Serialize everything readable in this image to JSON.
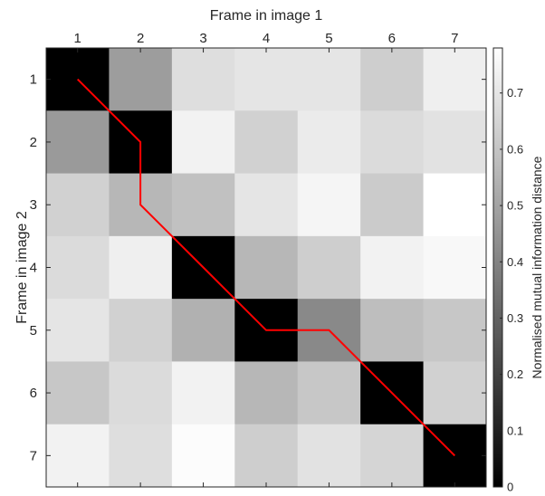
{
  "chart_data": {
    "type": "heatmap",
    "xlabel": "Frame in image 1",
    "ylabel": "Frame in image 2",
    "x_categories": [
      "1",
      "2",
      "3",
      "4",
      "5",
      "6",
      "7"
    ],
    "y_categories": [
      "1",
      "2",
      "3",
      "4",
      "5",
      "6",
      "7"
    ],
    "x_axis_position": "top",
    "values": [
      [
        0.0,
        0.48,
        0.68,
        0.7,
        0.7,
        0.63,
        0.73
      ],
      [
        0.47,
        0.0,
        0.74,
        0.64,
        0.72,
        0.67,
        0.69
      ],
      [
        0.64,
        0.56,
        0.59,
        0.7,
        0.75,
        0.62,
        0.78
      ],
      [
        0.67,
        0.73,
        0.0,
        0.56,
        0.63,
        0.74,
        0.76
      ],
      [
        0.7,
        0.64,
        0.54,
        0.0,
        0.42,
        0.58,
        0.61
      ],
      [
        0.61,
        0.67,
        0.74,
        0.56,
        0.61,
        0.0,
        0.64
      ],
      [
        0.74,
        0.68,
        0.77,
        0.63,
        0.69,
        0.65,
        0.0
      ]
    ],
    "path": {
      "color": "#ff0000",
      "points": [
        [
          1,
          1
        ],
        [
          2,
          2
        ],
        [
          2,
          3
        ],
        [
          3,
          4
        ],
        [
          4,
          5
        ],
        [
          5,
          5
        ],
        [
          6,
          6
        ],
        [
          7,
          7
        ]
      ]
    },
    "colorbar": {
      "label": "Normalised mutual information distance",
      "range": [
        0,
        0.78
      ],
      "ticks": [
        "0",
        "0.1",
        "0.2",
        "0.3",
        "0.4",
        "0.5",
        "0.6",
        "0.7"
      ],
      "tick_values": [
        0,
        0.1,
        0.2,
        0.3,
        0.4,
        0.5,
        0.6,
        0.7
      ],
      "colormap": "gray"
    }
  }
}
